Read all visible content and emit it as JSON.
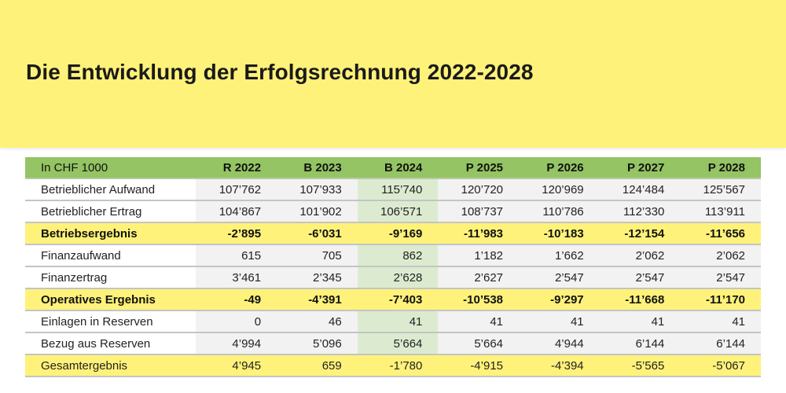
{
  "title": "Die Entwicklung der Erfolgsrechnung 2022-2028",
  "table": {
    "unit_label": "In CHF 1000",
    "columns": [
      "R 2022",
      "B 2023",
      "B 2024",
      "P 2025",
      "P 2026",
      "P 2027",
      "P 2028"
    ],
    "rows": [
      {
        "label": "Betrieblicher Aufwand",
        "values": [
          "107’762",
          "107’933",
          "115’740",
          "120’720",
          "120’969",
          "124’484",
          "125’567"
        ],
        "style": "normal"
      },
      {
        "label": "Betrieblicher Ertrag",
        "values": [
          "104’867",
          "101’902",
          "106’571",
          "108’737",
          "110’786",
          "112’330",
          "113’911"
        ],
        "style": "normal"
      },
      {
        "label": "Betriebsergebnis",
        "values": [
          "-2’895",
          "-6’031",
          "-9’169",
          "-11’983",
          "-10’183",
          "-12’154",
          "-11’656"
        ],
        "style": "bold-yellow"
      },
      {
        "label": "Finanzaufwand",
        "values": [
          "615",
          "705",
          "862",
          "1’182",
          "1’662",
          "2’062",
          "2’062"
        ],
        "style": "normal"
      },
      {
        "label": "Finanzertrag",
        "values": [
          "3’461",
          "2’345",
          "2’628",
          "2’627",
          "2’547",
          "2’547",
          "2’547"
        ],
        "style": "normal"
      },
      {
        "label": "Operatives Ergebnis",
        "values": [
          "-49",
          "-4’391",
          "-7’403",
          "-10’538",
          "-9’297",
          "-11’668",
          "-11’170"
        ],
        "style": "bold-yellow"
      },
      {
        "label": "Einlagen in Reserven",
        "values": [
          "0",
          "46",
          "41",
          "41",
          "41",
          "41",
          "41"
        ],
        "style": "normal"
      },
      {
        "label": "Bezug aus Reserven",
        "values": [
          "4’994",
          "5’096",
          "5’664",
          "5’664",
          "4’944",
          "6’144",
          "6’144"
        ],
        "style": "normal"
      },
      {
        "label": "Gesamtergebnis",
        "values": [
          "4’945",
          "659",
          "-1’780",
          "-4’915",
          "-4’394",
          "-5’565",
          "-5’067"
        ],
        "style": "yellow"
      }
    ],
    "highlight_column_index": 2
  },
  "colors": {
    "banner": "#fff27a",
    "header": "#94c463",
    "highlight_column": "#dcebd0",
    "cell": "#f2f2f2"
  }
}
